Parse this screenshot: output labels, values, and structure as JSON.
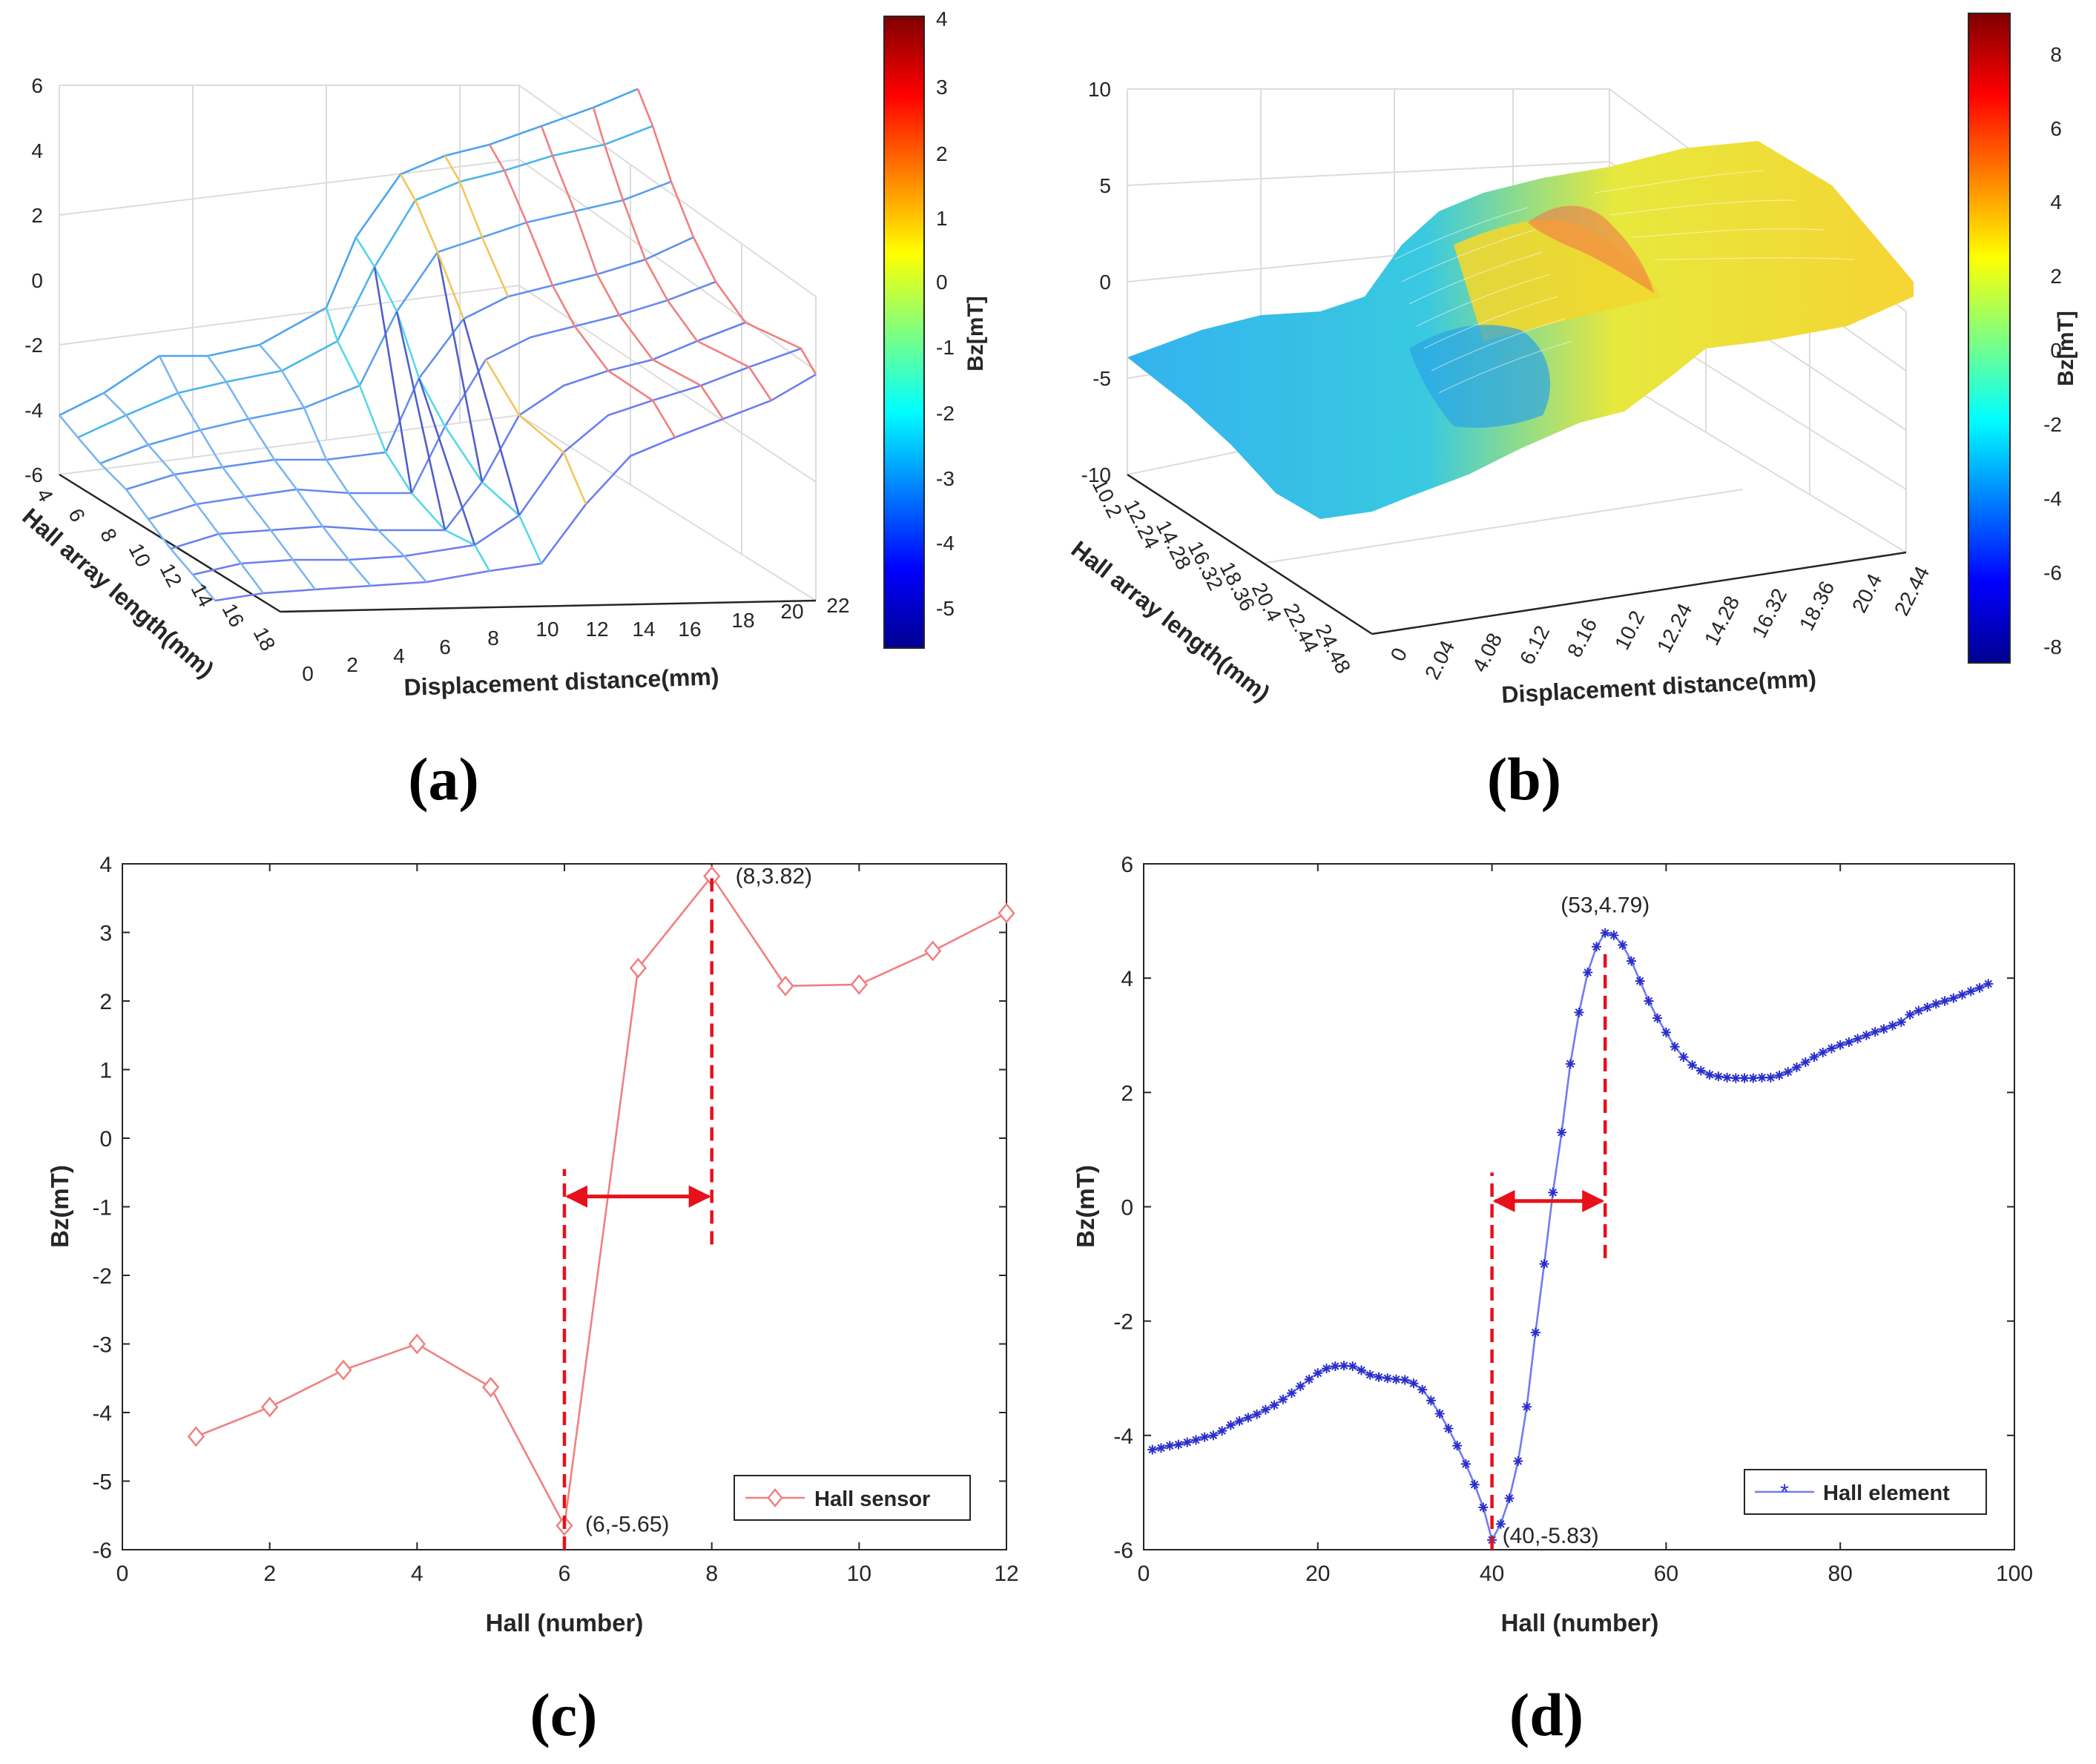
{
  "panel_labels": {
    "a": "(a)",
    "b": "(b)",
    "c": "(c)",
    "d": "(d)"
  },
  "colors": {
    "hall_sensor": "#f08080",
    "hall_element": "#6f7cf2",
    "marker_line": "#e8101a",
    "axis": "#262626",
    "grid": "#e0e0e0"
  },
  "chart_data": [
    {
      "panel": "a",
      "type": "surface",
      "zlabel": "",
      "xlabel": "Displacement distance(mm)",
      "ylabel": "Hall array length(mm)",
      "x_ticks": [
        "0",
        "2",
        "4",
        "6",
        "8",
        "10",
        "12",
        "14",
        "16",
        "18",
        "20",
        "22"
      ],
      "y_ticks": [
        "4",
        "6",
        "8",
        "10",
        "12",
        "14",
        "16",
        "18"
      ],
      "z_ticks": [
        "-6",
        "-4",
        "-2",
        "0",
        "2",
        "4",
        "6"
      ],
      "zlim": [
        -6,
        6
      ],
      "colorbar": {
        "label": "Bz[mT]",
        "ticks": [
          "4",
          "3",
          "2",
          "1",
          "0",
          "-1",
          "-2",
          "-3",
          "-4",
          "-5"
        ],
        "range": [
          -5.65,
          4
        ]
      }
    },
    {
      "panel": "b",
      "type": "surface",
      "xlabel": "Displacement distance(mm)",
      "ylabel": "Hall array length(mm)",
      "x_ticks": [
        "0",
        "2.04",
        "4.08",
        "6.12",
        "8.16",
        "10.2",
        "12.24",
        "14.28",
        "16.32",
        "18.36",
        "20.4",
        "22.44"
      ],
      "y_ticks": [
        "10.2",
        "12.24",
        "14.28",
        "16.32",
        "18.36",
        "20.4",
        "22.44",
        "24.48"
      ],
      "z_ticks": [
        "10",
        "5",
        "0",
        "-5",
        "-10"
      ],
      "zlim": [
        -10,
        10
      ],
      "colorbar": {
        "label": "Bz[mT]",
        "ticks": [
          "8",
          "6",
          "4",
          "2",
          "0",
          "-2",
          "-4",
          "-6",
          "-8"
        ],
        "range": [
          -8.5,
          9
        ]
      }
    },
    {
      "panel": "c",
      "type": "line",
      "title": "",
      "xlabel": "Hall (number)",
      "ylabel": "Bz(mT)",
      "xlim": [
        0,
        12
      ],
      "ylim": [
        -6,
        4
      ],
      "x_ticks": [
        "0",
        "2",
        "4",
        "6",
        "8",
        "10",
        "12"
      ],
      "y_ticks": [
        "4",
        "3",
        "2",
        "1",
        "0",
        "-1",
        "-2",
        "-3",
        "-4",
        "-5",
        "-6"
      ],
      "series": [
        {
          "name": "Hall sensor",
          "marker": "diamond",
          "x": [
            1,
            2,
            3,
            4,
            5,
            6,
            7,
            8,
            9,
            10,
            11,
            12
          ],
          "values": [
            -4.35,
            -3.92,
            -3.38,
            -3.0,
            -3.63,
            -5.65,
            2.48,
            3.82,
            2.22,
            2.24,
            2.73,
            3.28
          ]
        }
      ],
      "annotations": [
        {
          "text": "(8,3.82)",
          "x": 8,
          "y": 3.82
        },
        {
          "text": "(6,-5.65)",
          "x": 6,
          "y": -5.65
        }
      ],
      "markers": {
        "lines_x": [
          6,
          8
        ],
        "line_yrange": [
          [
            -6,
            -0.45
          ],
          [
            -1.55,
            3.82
          ]
        ],
        "arrow_y": -0.85
      },
      "legend": {
        "position": "bottom-right",
        "entries": [
          "Hall sensor"
        ]
      }
    },
    {
      "panel": "d",
      "type": "line",
      "title": "",
      "xlabel": "Hall (number)",
      "ylabel": "Bz(mT)",
      "xlim": [
        0,
        100
      ],
      "ylim": [
        -6,
        6
      ],
      "x_ticks": [
        "0",
        "20",
        "40",
        "60",
        "80",
        "100"
      ],
      "y_ticks": [
        "6",
        "4",
        "2",
        "0",
        "-2",
        "-4",
        "-6"
      ],
      "series": [
        {
          "name": "Hall element",
          "marker": "star",
          "x": [
            1,
            2,
            3,
            4,
            5,
            6,
            7,
            8,
            9,
            10,
            11,
            12,
            13,
            14,
            15,
            16,
            17,
            18,
            19,
            20,
            21,
            22,
            23,
            24,
            25,
            26,
            27,
            28,
            29,
            30,
            31,
            32,
            33,
            34,
            35,
            36,
            37,
            38,
            39,
            40,
            41,
            42,
            43,
            44,
            45,
            46,
            47,
            48,
            49,
            50,
            51,
            52,
            53,
            54,
            55,
            56,
            57,
            58,
            59,
            60,
            61,
            62,
            63,
            64,
            65,
            66,
            67,
            68,
            69,
            70,
            71,
            72,
            73,
            74,
            75,
            76,
            77,
            78,
            79,
            80,
            81,
            82,
            83,
            84,
            85,
            86,
            87,
            88,
            89,
            90,
            91,
            92,
            93,
            94,
            95,
            96,
            97
          ],
          "values": [
            -4.25,
            -4.22,
            -4.18,
            -4.16,
            -4.12,
            -4.08,
            -4.03,
            -4.0,
            -3.92,
            -3.82,
            -3.75,
            -3.69,
            -3.63,
            -3.55,
            -3.47,
            -3.37,
            -3.26,
            -3.14,
            -3.02,
            -2.91,
            -2.83,
            -2.79,
            -2.78,
            -2.79,
            -2.86,
            -2.94,
            -2.98,
            -3.0,
            -3.02,
            -3.03,
            -3.09,
            -3.2,
            -3.39,
            -3.62,
            -3.88,
            -4.18,
            -4.5,
            -4.86,
            -5.26,
            -5.83,
            -5.55,
            -5.1,
            -4.45,
            -3.5,
            -2.2,
            -1.0,
            0.25,
            1.3,
            2.5,
            3.4,
            4.1,
            4.55,
            4.79,
            4.75,
            4.58,
            4.3,
            3.95,
            3.6,
            3.3,
            3.05,
            2.8,
            2.62,
            2.48,
            2.38,
            2.31,
            2.28,
            2.26,
            2.25,
            2.25,
            2.25,
            2.26,
            2.26,
            2.3,
            2.36,
            2.44,
            2.53,
            2.62,
            2.7,
            2.77,
            2.83,
            2.88,
            2.94,
            3.0,
            3.06,
            3.11,
            3.17,
            3.23,
            3.36,
            3.43,
            3.49,
            3.55,
            3.6,
            3.65,
            3.71,
            3.77,
            3.83,
            3.9
          ]
        }
      ],
      "annotations": [
        {
          "text": "(53,4.79)",
          "x": 53,
          "y": 4.79
        },
        {
          "text": "(40,-5.83)",
          "x": 40,
          "y": -5.83
        }
      ],
      "markers": {
        "lines_x": [
          40,
          53
        ],
        "line_yrange": [
          [
            -6,
            0.6
          ],
          [
            -0.9,
            4.55
          ]
        ],
        "arrow_y": 0.1
      },
      "legend": {
        "position": "bottom-right",
        "entries": [
          "Hall element"
        ]
      }
    }
  ]
}
